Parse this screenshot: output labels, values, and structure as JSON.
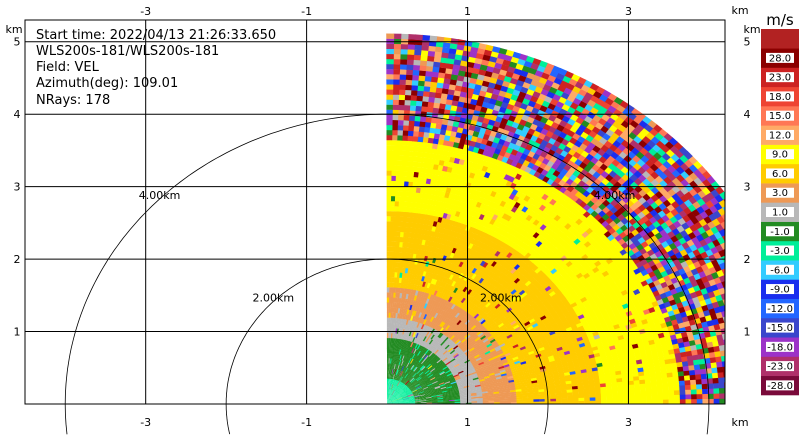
{
  "info": {
    "start_time": "Start time: 2022/04/13 21:26:33.650",
    "instrument": "WLS200s-181/WLS200s-181",
    "field": "Field: VEL",
    "azimuth": "Azimuth(deg): 109.01",
    "nrays": "NRays: 178"
  },
  "chart_data": {
    "type": "heatmap",
    "x_ticks": [
      -3,
      -1,
      1,
      3
    ],
    "x_tick_labels": [
      "-3",
      "-1",
      "1",
      "3"
    ],
    "y_ticks": [
      1,
      2,
      3,
      4,
      5
    ],
    "y_tick_labels": [
      "1",
      "2",
      "3",
      "4",
      "5"
    ],
    "x_unit": "km",
    "y_unit": "km",
    "xlim": [
      -4.5,
      4.2
    ],
    "ylim": [
      0,
      5.3
    ],
    "grid": true,
    "range_rings": [
      {
        "radius_km": 2,
        "label": "2.00km"
      },
      {
        "radius_km": 4,
        "label": "4.00km"
      }
    ],
    "sector": {
      "azimuth_start_deg": 0,
      "azimuth_end_deg": 90,
      "max_range_km": 5.1
    },
    "colorbar": {
      "unit": "m/s",
      "tick_labels": [
        "-28.0",
        "-23.0",
        "-18.0",
        "-15.0",
        "-12.0",
        "-9.0",
        "-6.0",
        "-3.0",
        "-1.0",
        "1.0",
        "3.0",
        "6.0",
        "9.0",
        "12.0",
        "15.0",
        "18.0",
        "23.0",
        "28.0"
      ],
      "colors": [
        "#7a0a3a",
        "#b0306a",
        "#9c33c8",
        "#3a46cc",
        "#2266ff",
        "#1a2eee",
        "#33ccff",
        "#00ee99",
        "#228b22",
        "#b8b8b8",
        "#ee9955",
        "#ffcc00",
        "#ffff00",
        "#ffaa66",
        "#ff7755",
        "#ee4433",
        "#cc2222",
        "#8b0000",
        "#b22222"
      ]
    },
    "velocity_bands": [
      {
        "r_min_km": 0.0,
        "r_max_km": 0.35,
        "value": -4.5
      },
      {
        "r_min_km": 0.35,
        "r_max_km": 0.9,
        "value": -2.0
      },
      {
        "r_min_km": 0.9,
        "r_max_km": 1.15,
        "value": 0.0
      },
      {
        "r_min_km": 1.15,
        "r_max_km": 1.6,
        "value": 2.0
      },
      {
        "r_min_km": 1.6,
        "r_max_km": 2.6,
        "value": 5.0
      },
      {
        "r_min_km": 2.6,
        "r_max_km": 3.6,
        "value": 7.0
      },
      {
        "r_min_km": 3.6,
        "r_max_km": 5.1,
        "value": "noisy"
      }
    ]
  }
}
